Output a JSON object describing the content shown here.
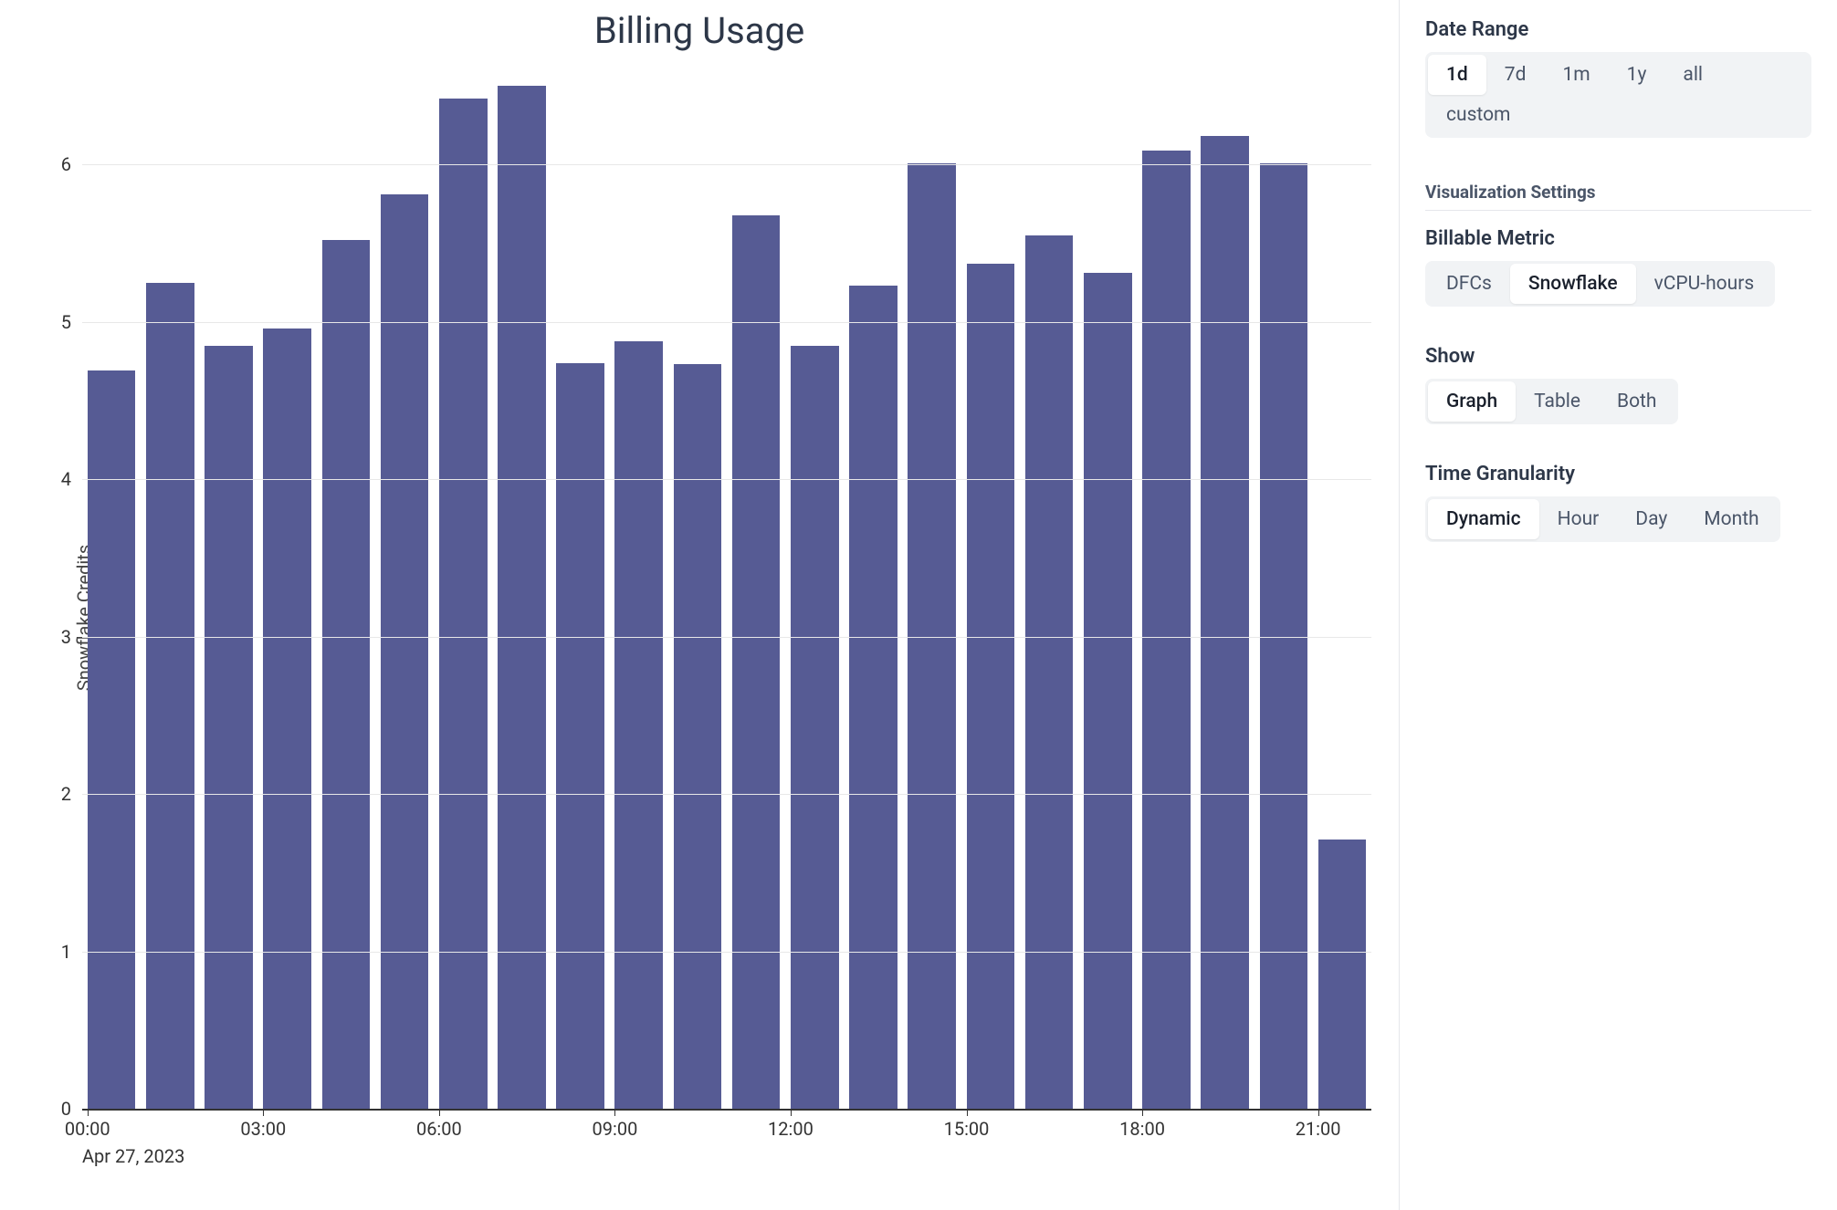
{
  "chart": {
    "type": "bar",
    "title": "Billing Usage",
    "ylabel": "Snowflake Credits",
    "bar_color": "#565b94",
    "background_color": "#ffffff",
    "grid_color": "#e8e8e8",
    "axis_color": "#333333",
    "ylim": [
      0,
      6.6
    ],
    "yticks": [
      0,
      1,
      2,
      3,
      4,
      5,
      6
    ],
    "title_fontsize": 40,
    "tick_fontsize": 20,
    "bar_width": 0.82,
    "date_label": "Apr 27, 2023",
    "x_categories": [
      "00:00",
      "01:00",
      "02:00",
      "03:00",
      "04:00",
      "05:00",
      "06:00",
      "07:00",
      "08:00",
      "09:00",
      "10:00",
      "11:00",
      "12:00",
      "13:00",
      "14:00",
      "15:00",
      "16:00",
      "17:00",
      "18:00",
      "19:00",
      "20:00",
      "21:00"
    ],
    "x_tick_labels": [
      "00:00",
      "03:00",
      "06:00",
      "09:00",
      "12:00",
      "15:00",
      "18:00",
      "21:00"
    ],
    "values": [
      4.69,
      5.25,
      4.85,
      4.96,
      5.52,
      5.81,
      6.42,
      6.5,
      4.74,
      4.88,
      4.73,
      5.68,
      4.85,
      5.23,
      6.01,
      5.37,
      5.55,
      5.31,
      6.09,
      6.18,
      6.01,
      1.71
    ]
  },
  "sidebar": {
    "date_range": {
      "label": "Date Range",
      "options": [
        "1d",
        "7d",
        "1m",
        "1y",
        "all",
        "custom"
      ],
      "active": "1d"
    },
    "viz_settings_label": "Visualization Settings",
    "billable_metric": {
      "label": "Billable Metric",
      "options": [
        "DFCs",
        "Snowflake",
        "vCPU-hours"
      ],
      "active": "Snowflake"
    },
    "show": {
      "label": "Show",
      "options": [
        "Graph",
        "Table",
        "Both"
      ],
      "active": "Graph"
    },
    "time_granularity": {
      "label": "Time Granularity",
      "options": [
        "Dynamic",
        "Hour",
        "Day",
        "Month"
      ],
      "active": "Dynamic"
    }
  }
}
